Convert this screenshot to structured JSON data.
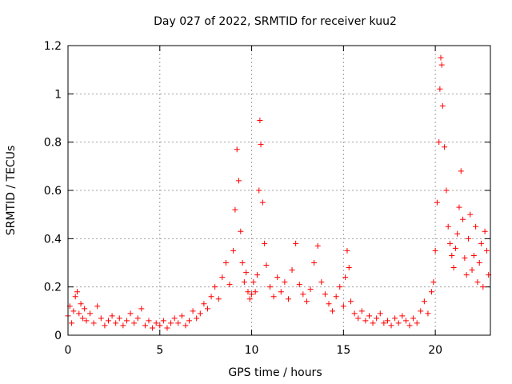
{
  "chart_data": {
    "type": "scatter",
    "title": "Day 027 of 2022, SRMTID for receiver kuu2",
    "xlabel": "GPS time / hours",
    "ylabel": "SRMTID / TECUs",
    "xlim": [
      0,
      23
    ],
    "ylim": [
      0,
      1.2
    ],
    "x_ticks": [
      0,
      5,
      10,
      15,
      20
    ],
    "y_ticks": [
      0,
      0.2,
      0.4,
      0.6,
      0.8,
      1,
      1.2
    ],
    "x_tick_labels": [
      "0",
      "5",
      "10",
      "15",
      "20"
    ],
    "y_tick_labels": [
      "0",
      "0.2",
      "0.4",
      "0.6",
      "0.8",
      "1",
      "1.2"
    ],
    "grid": true,
    "marker": "+",
    "marker_color": "#ff0000",
    "series": [
      {
        "name": "kuu2",
        "points": [
          [
            0.0,
            0.08
          ],
          [
            0.1,
            0.12
          ],
          [
            0.2,
            0.05
          ],
          [
            0.3,
            0.1
          ],
          [
            0.4,
            0.16
          ],
          [
            0.5,
            0.18
          ],
          [
            0.6,
            0.09
          ],
          [
            0.7,
            0.13
          ],
          [
            0.8,
            0.07
          ],
          [
            0.9,
            0.11
          ],
          [
            1.0,
            0.06
          ],
          [
            1.2,
            0.09
          ],
          [
            1.4,
            0.05
          ],
          [
            1.6,
            0.12
          ],
          [
            1.8,
            0.07
          ],
          [
            2.0,
            0.04
          ],
          [
            2.2,
            0.06
          ],
          [
            2.4,
            0.08
          ],
          [
            2.6,
            0.05
          ],
          [
            2.8,
            0.07
          ],
          [
            3.0,
            0.04
          ],
          [
            3.2,
            0.06
          ],
          [
            3.4,
            0.09
          ],
          [
            3.6,
            0.05
          ],
          [
            3.8,
            0.07
          ],
          [
            4.0,
            0.11
          ],
          [
            4.2,
            0.04
          ],
          [
            4.4,
            0.06
          ],
          [
            4.6,
            0.03
          ],
          [
            4.8,
            0.05
          ],
          [
            5.0,
            0.04
          ],
          [
            5.2,
            0.06
          ],
          [
            5.4,
            0.03
          ],
          [
            5.6,
            0.05
          ],
          [
            5.8,
            0.07
          ],
          [
            6.0,
            0.05
          ],
          [
            6.2,
            0.08
          ],
          [
            6.4,
            0.04
          ],
          [
            6.6,
            0.06
          ],
          [
            6.8,
            0.1
          ],
          [
            7.0,
            0.07
          ],
          [
            7.2,
            0.09
          ],
          [
            7.4,
            0.13
          ],
          [
            7.6,
            0.11
          ],
          [
            7.8,
            0.16
          ],
          [
            8.0,
            0.2
          ],
          [
            8.2,
            0.15
          ],
          [
            8.4,
            0.24
          ],
          [
            8.6,
            0.3
          ],
          [
            8.8,
            0.21
          ],
          [
            9.0,
            0.35
          ],
          [
            9.1,
            0.52
          ],
          [
            9.2,
            0.77
          ],
          [
            9.3,
            0.64
          ],
          [
            9.4,
            0.43
          ],
          [
            9.5,
            0.3
          ],
          [
            9.6,
            0.22
          ],
          [
            9.7,
            0.26
          ],
          [
            9.8,
            0.18
          ],
          [
            9.9,
            0.15
          ],
          [
            10.0,
            0.17
          ],
          [
            10.1,
            0.22
          ],
          [
            10.2,
            0.18
          ],
          [
            10.3,
            0.25
          ],
          [
            10.4,
            0.6
          ],
          [
            10.45,
            0.89
          ],
          [
            10.5,
            0.79
          ],
          [
            10.6,
            0.55
          ],
          [
            10.7,
            0.38
          ],
          [
            10.8,
            0.29
          ],
          [
            11.0,
            0.2
          ],
          [
            11.2,
            0.16
          ],
          [
            11.4,
            0.24
          ],
          [
            11.6,
            0.18
          ],
          [
            11.8,
            0.22
          ],
          [
            12.0,
            0.15
          ],
          [
            12.2,
            0.27
          ],
          [
            12.4,
            0.38
          ],
          [
            12.6,
            0.21
          ],
          [
            12.8,
            0.17
          ],
          [
            13.0,
            0.14
          ],
          [
            13.2,
            0.19
          ],
          [
            13.4,
            0.3
          ],
          [
            13.6,
            0.37
          ],
          [
            13.8,
            0.22
          ],
          [
            14.0,
            0.17
          ],
          [
            14.2,
            0.13
          ],
          [
            14.4,
            0.1
          ],
          [
            14.6,
            0.16
          ],
          [
            14.8,
            0.2
          ],
          [
            15.0,
            0.12
          ],
          [
            15.1,
            0.24
          ],
          [
            15.2,
            0.35
          ],
          [
            15.3,
            0.28
          ],
          [
            15.4,
            0.14
          ],
          [
            15.6,
            0.09
          ],
          [
            15.8,
            0.07
          ],
          [
            16.0,
            0.1
          ],
          [
            16.2,
            0.06
          ],
          [
            16.4,
            0.08
          ],
          [
            16.6,
            0.05
          ],
          [
            16.8,
            0.07
          ],
          [
            17.0,
            0.09
          ],
          [
            17.2,
            0.05
          ],
          [
            17.4,
            0.06
          ],
          [
            17.6,
            0.04
          ],
          [
            17.8,
            0.07
          ],
          [
            18.0,
            0.05
          ],
          [
            18.2,
            0.08
          ],
          [
            18.4,
            0.06
          ],
          [
            18.6,
            0.04
          ],
          [
            18.8,
            0.07
          ],
          [
            19.0,
            0.05
          ],
          [
            19.2,
            0.1
          ],
          [
            19.4,
            0.14
          ],
          [
            19.6,
            0.09
          ],
          [
            19.8,
            0.18
          ],
          [
            19.9,
            0.22
          ],
          [
            20.0,
            0.35
          ],
          [
            20.1,
            0.55
          ],
          [
            20.2,
            0.8
          ],
          [
            20.25,
            1.02
          ],
          [
            20.3,
            1.15
          ],
          [
            20.35,
            1.12
          ],
          [
            20.4,
            0.95
          ],
          [
            20.5,
            0.78
          ],
          [
            20.6,
            0.6
          ],
          [
            20.7,
            0.45
          ],
          [
            20.8,
            0.38
          ],
          [
            20.9,
            0.33
          ],
          [
            21.0,
            0.28
          ],
          [
            21.1,
            0.36
          ],
          [
            21.2,
            0.42
          ],
          [
            21.3,
            0.53
          ],
          [
            21.4,
            0.68
          ],
          [
            21.5,
            0.48
          ],
          [
            21.6,
            0.32
          ],
          [
            21.7,
            0.25
          ],
          [
            21.8,
            0.4
          ],
          [
            21.9,
            0.5
          ],
          [
            22.0,
            0.27
          ],
          [
            22.1,
            0.33
          ],
          [
            22.2,
            0.45
          ],
          [
            22.3,
            0.22
          ],
          [
            22.4,
            0.3
          ],
          [
            22.5,
            0.38
          ],
          [
            22.6,
            0.2
          ],
          [
            22.7,
            0.43
          ],
          [
            22.8,
            0.35
          ],
          [
            22.9,
            0.25
          ]
        ]
      }
    ]
  }
}
